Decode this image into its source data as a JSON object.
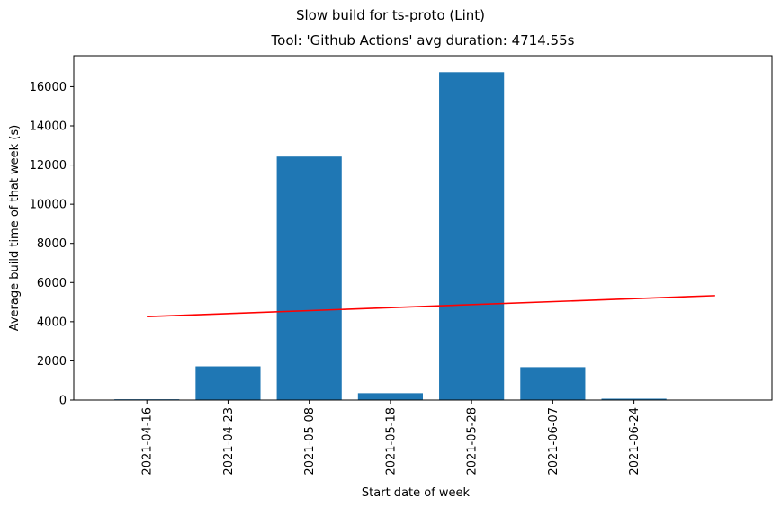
{
  "suptitle": "Slow build for ts-proto (Lint)",
  "title": "Tool: 'Github Actions' avg duration: 4714.55s",
  "chart_data": {
    "type": "bar",
    "title": "Tool: 'Github Actions' avg duration: 4714.55s",
    "xlabel": "Start date of week",
    "ylabel": "Average build time of that week (s)",
    "categories": [
      "2021-04-16",
      "2021-04-23",
      "2021-05-08",
      "2021-05-18",
      "2021-05-28",
      "2021-06-07",
      "2021-06-24"
    ],
    "values": [
      40,
      1720,
      12430,
      350,
      16740,
      1680,
      70
    ],
    "ylim": [
      0,
      17580
    ],
    "yticks": [
      0,
      2000,
      4000,
      6000,
      8000,
      10000,
      12000,
      14000,
      16000
    ],
    "bar_color": "#1f77b4",
    "trendline": {
      "color": "#ff0000",
      "start": 4260,
      "end": 5330
    },
    "grid": false
  }
}
